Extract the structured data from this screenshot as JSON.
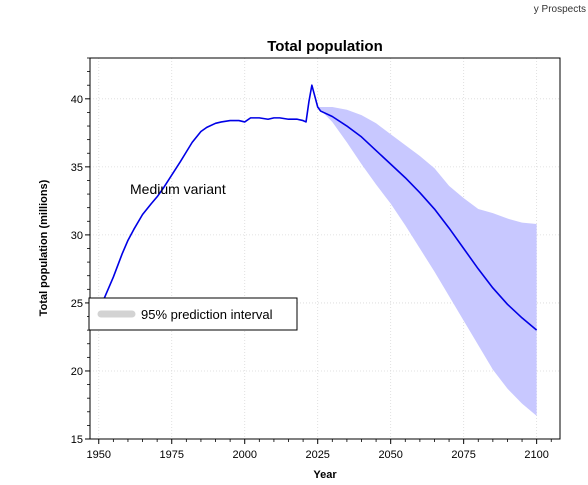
{
  "page": {
    "corner_text": "y Prospects"
  },
  "chart_data": {
    "type": "line",
    "title": "Total population",
    "xlabel": "Year",
    "ylabel": "Total population (millions)",
    "xlim": [
      1947,
      2108
    ],
    "ylim": [
      15,
      43
    ],
    "xticks": [
      1950,
      1975,
      2000,
      2025,
      2050,
      2075,
      2100
    ],
    "yticks": [
      15,
      20,
      25,
      30,
      35,
      40
    ],
    "grid": true,
    "annotation": "Medium variant",
    "legend": {
      "position": "lower-left",
      "entries": [
        "95% prediction interval"
      ]
    },
    "colors": {
      "line": "#0000e6",
      "band": "#c8c8ff",
      "legend_swatch": "#d3d3d3",
      "grid": "#d9d9d9"
    },
    "series": [
      {
        "name": "Medium variant",
        "x": [
          1950,
          1952,
          1955,
          1958,
          1960,
          1962,
          1965,
          1968,
          1970,
          1972,
          1975,
          1978,
          1980,
          1982,
          1985,
          1987,
          1990,
          1992,
          1995,
          1998,
          2000,
          2002,
          2005,
          2008,
          2010,
          2012,
          2015,
          2018,
          2020,
          2021,
          2022,
          2023,
          2024,
          2025,
          2026,
          2030,
          2035,
          2040,
          2045,
          2050,
          2055,
          2060,
          2065,
          2070,
          2075,
          2080,
          2085,
          2090,
          2095,
          2100
        ],
        "y": [
          24.8,
          25.4,
          26.9,
          28.6,
          29.6,
          30.4,
          31.5,
          32.3,
          32.8,
          33.4,
          34.4,
          35.4,
          36.1,
          36.8,
          37.6,
          37.9,
          38.2,
          38.3,
          38.4,
          38.4,
          38.3,
          38.6,
          38.6,
          38.5,
          38.6,
          38.6,
          38.5,
          38.5,
          38.4,
          38.3,
          39.8,
          41.0,
          40.2,
          39.4,
          39.1,
          38.7,
          38.0,
          37.2,
          36.2,
          35.2,
          34.2,
          33.1,
          31.9,
          30.5,
          29.0,
          27.5,
          26.1,
          24.9,
          23.9,
          23.0
        ]
      }
    ],
    "interval_95": {
      "x": [
        2025,
        2030,
        2035,
        2040,
        2045,
        2050,
        2055,
        2060,
        2065,
        2070,
        2075,
        2080,
        2085,
        2090,
        2095,
        2100
      ],
      "lower": [
        39.4,
        38.3,
        36.8,
        35.2,
        33.7,
        32.3,
        30.7,
        29.0,
        27.3,
        25.5,
        23.7,
        21.9,
        20.1,
        18.7,
        17.6,
        16.7
      ],
      "upper": [
        39.4,
        39.4,
        39.2,
        38.8,
        38.2,
        37.4,
        36.6,
        35.8,
        34.9,
        33.6,
        32.7,
        31.9,
        31.6,
        31.2,
        30.9,
        30.8
      ]
    }
  }
}
